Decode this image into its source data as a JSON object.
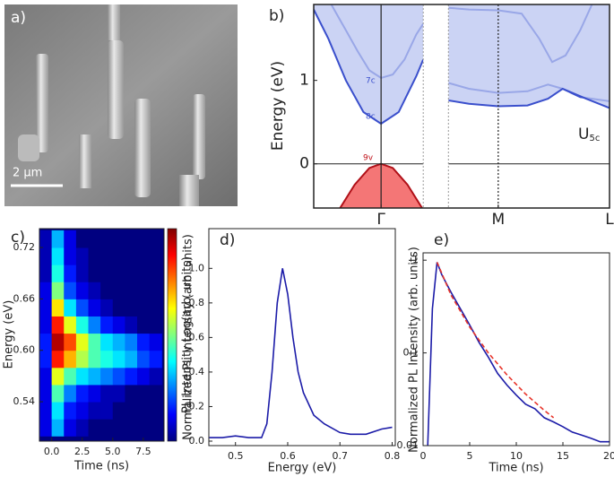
{
  "panel_a": {
    "label": "a)",
    "scale_bar": "2 μm"
  },
  "chart_data": [
    {
      "type": "line",
      "label": "b)",
      "ylabel": "Energy (eV)",
      "xlim": [
        -1.15,
        3.9
      ],
      "ylim": [
        -0.53,
        1.91
      ],
      "xticks": [
        {
          "value": 0,
          "label": "Γ"
        },
        {
          "value": 2,
          "label": "M"
        },
        {
          "value": 3.9,
          "label": "L"
        }
      ],
      "yticks": [
        0,
        1
      ],
      "vlines": [
        {
          "x": 0,
          "style": "solid"
        },
        {
          "x": 2,
          "style": "dotted"
        }
      ],
      "hlines": [
        0
      ],
      "gap": [
        0.72,
        1.15
      ],
      "annotations": [
        {
          "text": "7c"
        },
        {
          "text": "8c"
        },
        {
          "text": "9v"
        },
        {
          "text": "U",
          "sub": "5c"
        }
      ],
      "series": [
        {
          "color": "#3a4fcc",
          "x": [
            -0.85,
            -0.6,
            -0.4,
            -0.2,
            0,
            0.2,
            0.4,
            0.6,
            0.72
          ],
          "values": [
            1.91,
            1.6,
            1.35,
            1.12,
            1.03,
            1.07,
            1.25,
            1.55,
            1.68
          ]
        },
        {
          "color": "#3a4fcc",
          "fill": "top",
          "fill_color": "#b9c4f0",
          "x": [
            -1.15,
            -0.9,
            -0.6,
            -0.3,
            0,
            0.3,
            0.6,
            0.72
          ],
          "values": [
            1.85,
            1.5,
            1.0,
            0.62,
            0.48,
            0.62,
            1.05,
            1.25
          ]
        },
        {
          "color": "#b01018",
          "fill": "bottom",
          "fill_color": "#f04848",
          "x": [
            -0.7,
            -0.45,
            -0.2,
            0,
            0.2,
            0.45,
            0.7
          ],
          "values": [
            -0.53,
            -0.25,
            -0.05,
            0,
            -0.05,
            -0.25,
            -0.53
          ]
        },
        {
          "color": "#3a4fcc",
          "x": [
            1.15,
            1.5,
            2,
            2.4,
            2.7,
            2.92,
            3.15,
            3.4,
            3.6
          ],
          "values": [
            1.87,
            1.85,
            1.84,
            1.8,
            1.5,
            1.22,
            1.3,
            1.6,
            1.91
          ]
        },
        {
          "color": "#3a4fcc",
          "x": [
            1.15,
            1.5,
            2,
            2.5,
            2.85,
            3.1,
            3.4,
            3.9
          ],
          "values": [
            0.97,
            0.9,
            0.85,
            0.87,
            0.95,
            0.9,
            0.8,
            0.75
          ]
        },
        {
          "color": "#3a4fcc",
          "fill": "top",
          "fill_color": "#b9c4f0",
          "x": [
            1.15,
            1.5,
            2,
            2.5,
            2.85,
            3.1,
            3.5,
            3.9
          ],
          "values": [
            0.76,
            0.72,
            0.69,
            0.7,
            0.78,
            0.9,
            0.78,
            0.67
          ]
        }
      ]
    },
    {
      "type": "heatmap",
      "label": "c)",
      "xlabel": "Time (ns)",
      "ylabel": "Energy (eV)",
      "colorbar_label": "PL Intensity Log(arb. units)",
      "xlim": [
        -1.0,
        9.2
      ],
      "ylim": [
        0.494,
        0.742
      ],
      "xticks": [
        {
          "value": 0,
          "label": "0.0"
        },
        2.5,
        {
          "value": 5,
          "label": "5.0"
        },
        7.5
      ],
      "yticks": [
        0.54,
        {
          "value": 0.6,
          "label": "0.60"
        },
        0.66,
        0.72
      ],
      "x_bins": [
        -1,
        0,
        1,
        2,
        3,
        4,
        5,
        6,
        7,
        8,
        9
      ],
      "y_bins": [
        0.5,
        0.52,
        0.54,
        0.56,
        0.58,
        0.6,
        0.62,
        0.64,
        0.66,
        0.68,
        0.7,
        0.72,
        0.74
      ],
      "values": [
        [
          0.1,
          0.3,
          0.1,
          0.05,
          0,
          0,
          0,
          0,
          0,
          0
        ],
        [
          0.1,
          0.35,
          0.15,
          0.1,
          0.05,
          0.05,
          0,
          0,
          0,
          0
        ],
        [
          0.1,
          0.45,
          0.25,
          0.15,
          0.1,
          0.05,
          0.05,
          0,
          0,
          0
        ],
        [
          0.1,
          0.6,
          0.45,
          0.35,
          0.3,
          0.25,
          0.2,
          0.15,
          0.1,
          0.05
        ],
        [
          0.15,
          0.85,
          0.7,
          0.55,
          0.45,
          0.4,
          0.35,
          0.3,
          0.2,
          0.15
        ],
        [
          0.15,
          0.95,
          0.8,
          0.6,
          0.45,
          0.35,
          0.3,
          0.25,
          0.15,
          0.1
        ],
        [
          0.1,
          0.85,
          0.6,
          0.4,
          0.25,
          0.15,
          0.1,
          0.05,
          0,
          0
        ],
        [
          0.1,
          0.65,
          0.35,
          0.2,
          0.1,
          0.05,
          0,
          0,
          0,
          0
        ],
        [
          0.1,
          0.5,
          0.2,
          0.1,
          0.05,
          0,
          0,
          0,
          0,
          0
        ],
        [
          0.05,
          0.4,
          0.15,
          0.05,
          0,
          0,
          0,
          0,
          0,
          0
        ],
        [
          0.05,
          0.35,
          0.1,
          0.05,
          0,
          0,
          0,
          0,
          0,
          0
        ],
        [
          0.05,
          0.3,
          0.1,
          0,
          0,
          0,
          0,
          0,
          0,
          0
        ]
      ]
    },
    {
      "type": "line",
      "label": "d)",
      "xlabel": "Energy (eV)",
      "ylabel": "Normalized PL Intensity (arb. units)",
      "xlim": [
        0.449,
        0.806
      ],
      "ylim": [
        -0.026,
        1.23
      ],
      "xticks": [
        0.5,
        0.6,
        0.7,
        0.8
      ],
      "yticks": [
        {
          "value": 0,
          "label": "0.0"
        },
        0.2,
        0.4,
        0.6,
        0.8,
        {
          "value": 1,
          "label": "1.0"
        }
      ],
      "series": [
        {
          "color": "#1c1ca8",
          "x": [
            0.45,
            0.475,
            0.5,
            0.525,
            0.55,
            0.56,
            0.57,
            0.58,
            0.59,
            0.6,
            0.61,
            0.62,
            0.63,
            0.65,
            0.67,
            0.7,
            0.72,
            0.75,
            0.78,
            0.8
          ],
          "values": [
            0.02,
            0.02,
            0.03,
            0.02,
            0.02,
            0.1,
            0.4,
            0.8,
            1.0,
            0.85,
            0.6,
            0.4,
            0.28,
            0.15,
            0.1,
            0.05,
            0.04,
            0.04,
            0.07,
            0.08
          ]
        }
      ]
    },
    {
      "type": "line",
      "label": "e)",
      "xlabel": "Time (ns)",
      "ylabel": "Normalized PL Intensity (arb. units)",
      "log_y": true,
      "xlim": [
        0,
        20
      ],
      "ylim": [
        0.01,
        1.2
      ],
      "xticks": [
        0,
        5,
        10,
        15,
        20
      ],
      "yticks": [
        0.01,
        0.1,
        1
      ],
      "series": [
        {
          "color": "#1c1ca8",
          "x": [
            0.5,
            1,
            1.5,
            2,
            3,
            4,
            5,
            6,
            7,
            8,
            9,
            10,
            11,
            12,
            13,
            14,
            15,
            16,
            17,
            18,
            19,
            20
          ],
          "values": [
            0.01,
            0.3,
            0.95,
            0.7,
            0.45,
            0.3,
            0.2,
            0.13,
            0.09,
            0.06,
            0.045,
            0.035,
            0.028,
            0.025,
            0.02,
            0.018,
            0.016,
            0.014,
            0.013,
            0.012,
            0.011,
            0.011
          ]
        },
        {
          "color": "#e8342a",
          "dashed": true,
          "x": [
            1.5,
            3,
            5,
            7,
            9,
            11,
            13,
            14
          ],
          "values": [
            0.95,
            0.42,
            0.19,
            0.1,
            0.058,
            0.036,
            0.024,
            0.02
          ]
        }
      ]
    }
  ]
}
